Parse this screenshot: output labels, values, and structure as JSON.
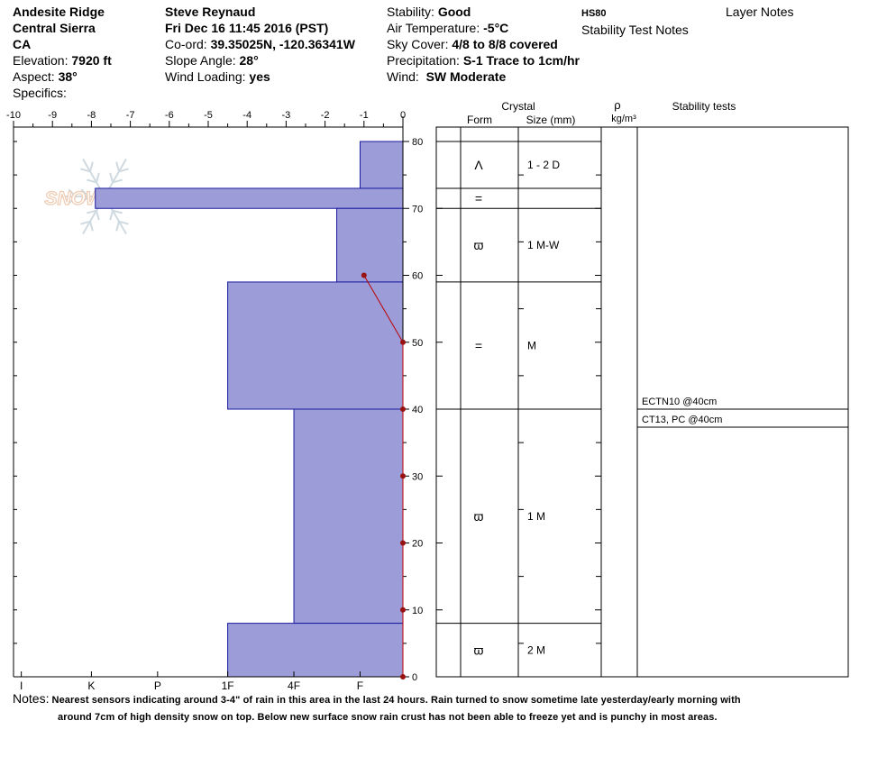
{
  "header": {
    "location": "Andesite Ridge",
    "range": "Central Sierra",
    "state": "CA",
    "elevation_label": "Elevation:",
    "elevation_value": "7920 ft",
    "aspect_label": "Aspect:",
    "aspect_value": "38°",
    "specifics_label": "Specifics:",
    "observer": "Steve Reynaud",
    "datetime": "Fri Dec 16 11:45 2016 (PST)",
    "coord_label": "Co-ord:",
    "coord_value": "39.35025N, -120.36341W",
    "slope_label": "Slope Angle:",
    "slope_value": "28°",
    "wind_loading_label": "Wind Loading:",
    "wind_loading_value": "yes",
    "stability_label": "Stability:",
    "stability_value": "Good",
    "air_temp_label": "Air Temperature:",
    "air_temp_value": "-5°C",
    "sky_label": "Sky Cover:",
    "sky_value": "4/8 to 8/8 covered",
    "precip_label": "Precipitation:",
    "precip_value": "S-1 Trace to 1cm/hr",
    "wind_label": "Wind:",
    "wind_value": "SW Moderate",
    "hs": "HS80",
    "stability_test_notes": "Stability Test Notes",
    "layer_notes": "Layer Notes"
  },
  "logo_text": "SNOW PILOT",
  "notes": {
    "label": "Notes:",
    "line1": "Nearest sensors indicating around 3-4\" of rain in this area in the last 24 hours.  Rain turned to snow sometime late yesterday/early morning with",
    "line2": "around 7cm of high density snow on top.  Below new surface snow rain crust has not been able to freeze yet and is punchy in most areas."
  },
  "colors": {
    "hardness_fill": "#9c9cd8",
    "hardness_stroke": "#1a1aa0",
    "temp_line": "#bb0000",
    "temp_point": "#991111"
  },
  "chart_data": {
    "type": "snow_profile",
    "temperature_axis": {
      "min": -10,
      "max": 0,
      "ticks": [
        "-10",
        "-9",
        "-8",
        "-7",
        "-6",
        "-5",
        "-4",
        "-3",
        "-2",
        "-1",
        "0"
      ]
    },
    "height_axis": {
      "min": 0,
      "max": 80,
      "ticks": [
        "0",
        "10",
        "20",
        "30",
        "40",
        "50",
        "60",
        "70",
        "80"
      ]
    },
    "hardness_axis": {
      "labels": [
        "I",
        "K",
        "P",
        "1F",
        "4F",
        "F"
      ],
      "positions": [
        9.8,
        8,
        6.3,
        4.5,
        2.8,
        1.1
      ]
    },
    "layers": [
      {
        "top": 80,
        "bottom": 73,
        "hardness_value": 1.1,
        "form": "Λ",
        "size": "1 - 2 D"
      },
      {
        "top": 73,
        "bottom": 70,
        "hardness_value": 7.9,
        "form": "=",
        "size": ""
      },
      {
        "top": 70,
        "bottom": 59,
        "hardness_value": 1.7,
        "form": "ϖ",
        "size": "1 M-W"
      },
      {
        "top": 59,
        "bottom": 40,
        "hardness_value": 4.5,
        "form": "=",
        "size": "M"
      },
      {
        "top": 40,
        "bottom": 8,
        "hardness_value": 2.8,
        "form": "ϖ",
        "size": "1 M"
      },
      {
        "top": 8,
        "bottom": 0,
        "hardness_value": 4.5,
        "form": "ϖ",
        "size": "2 M"
      }
    ],
    "temperature_profile": [
      {
        "height": 60,
        "temp": -1
      },
      {
        "height": 50,
        "temp": 0
      },
      {
        "height": 40,
        "temp": 0
      },
      {
        "height": 30,
        "temp": 0
      },
      {
        "height": 20,
        "temp": 0
      },
      {
        "height": 10,
        "temp": 0
      },
      {
        "height": 0,
        "temp": 0
      }
    ],
    "column_headers": {
      "crystal": "Crystal",
      "form": "Form",
      "size": "Size (mm)",
      "rho": "ρ",
      "density_unit": "kg/m³",
      "stability_tests": "Stability tests"
    },
    "stability_tests": [
      {
        "text": "ECTN10 @40cm",
        "height": 40
      },
      {
        "text": "CT13, PC @40cm",
        "height": 40
      }
    ]
  }
}
